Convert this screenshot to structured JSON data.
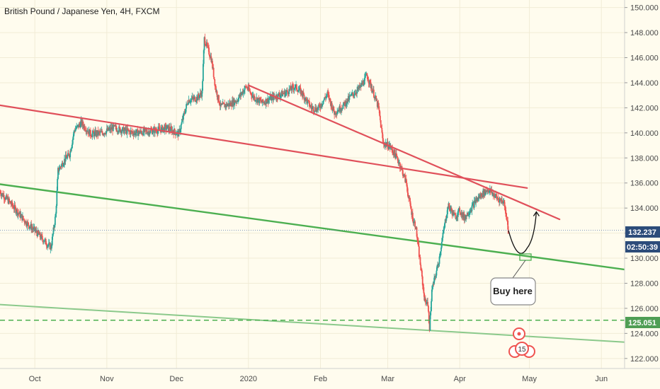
{
  "header": {
    "title": "British Pound / Japanese Yen, 4H, FXCM"
  },
  "colors": {
    "background": "#fffcee",
    "up": "#26a69a",
    "down": "#ef5350",
    "red_line": "#e0505a",
    "green_line": "#4caf50",
    "light_green_line": "#8bc98b",
    "tag_blue": "#2c4c7a",
    "tag_green": "#4f9e54"
  },
  "price_tags": {
    "last_price": "132.237",
    "countdown": "02:50:39",
    "support_level": "125.051"
  },
  "callout": {
    "text": "Buy here"
  },
  "badge": {
    "count": "15"
  },
  "chart_data": {
    "type": "candlestick",
    "title": "British Pound / Japanese Yen, 4H, FXCM",
    "ylim": [
      121.2,
      150.6
    ],
    "y_ticks": [
      122,
      124,
      126,
      128,
      130,
      132,
      134,
      136,
      138,
      140,
      142,
      144,
      146,
      148,
      150
    ],
    "y_tick_labels": [
      "122.000",
      "124.000",
      "126.000",
      "128.000",
      "130.000",
      "132.000",
      "134.000",
      "136.000",
      "138.000",
      "140.000",
      "142.000",
      "144.000",
      "146.000",
      "148.000",
      "150.000"
    ],
    "x_tick_labels": [
      "Oct",
      "Nov",
      "Dec",
      "2020",
      "Feb",
      "Mar",
      "Apr",
      "May",
      "Jun"
    ],
    "x_tick_dates": [
      "2019-10-01",
      "2019-11-01",
      "2019-12-01",
      "2020-01-01",
      "2020-02-01",
      "2020-03-01",
      "2020-04-01",
      "2020-05-01",
      "2020-06-01"
    ],
    "x_range": [
      "2019-09-16",
      "2020-06-11"
    ],
    "price_path": [
      [
        "2019-09-16",
        135.3
      ],
      [
        "2019-09-20",
        134.5
      ],
      [
        "2019-09-24",
        133.6
      ],
      [
        "2019-09-27",
        132.9
      ],
      [
        "2019-10-01",
        132.2
      ],
      [
        "2019-10-04",
        131.6
      ],
      [
        "2019-10-07",
        131.0
      ],
      [
        "2019-10-08",
        130.9
      ],
      [
        "2019-10-10",
        133.5
      ],
      [
        "2019-10-11",
        137.0
      ],
      [
        "2019-10-14",
        137.9
      ],
      [
        "2019-10-16",
        138.3
      ],
      [
        "2019-10-18",
        140.2
      ],
      [
        "2019-10-21",
        140.8
      ],
      [
        "2019-10-25",
        139.9
      ],
      [
        "2019-10-30",
        140.0
      ],
      [
        "2019-11-04",
        140.4
      ],
      [
        "2019-11-08",
        140.2
      ],
      [
        "2019-11-13",
        140.0
      ],
      [
        "2019-11-18",
        140.1
      ],
      [
        "2019-11-22",
        140.2
      ],
      [
        "2019-11-27",
        140.4
      ],
      [
        "2019-12-02",
        139.9
      ],
      [
        "2019-12-04",
        141.3
      ],
      [
        "2019-12-06",
        142.6
      ],
      [
        "2019-12-10",
        142.8
      ],
      [
        "2019-12-12",
        143.2
      ],
      [
        "2019-12-13",
        147.5
      ],
      [
        "2019-12-16",
        145.9
      ],
      [
        "2019-12-18",
        143.4
      ],
      [
        "2019-12-20",
        142.1
      ],
      [
        "2019-12-24",
        142.3
      ],
      [
        "2019-12-27",
        142.6
      ],
      [
        "2019-12-31",
        143.7
      ],
      [
        "2020-01-03",
        142.9
      ],
      [
        "2020-01-07",
        142.4
      ],
      [
        "2020-01-10",
        142.7
      ],
      [
        "2020-01-14",
        143.0
      ],
      [
        "2020-01-17",
        143.2
      ],
      [
        "2020-01-21",
        143.7
      ],
      [
        "2020-01-24",
        143.2
      ],
      [
        "2020-01-28",
        142.0
      ],
      [
        "2020-01-31",
        141.9
      ],
      [
        "2020-02-04",
        143.1
      ],
      [
        "2020-02-07",
        141.6
      ],
      [
        "2020-02-11",
        142.2
      ],
      [
        "2020-02-14",
        142.9
      ],
      [
        "2020-02-18",
        143.6
      ],
      [
        "2020-02-20",
        144.2
      ],
      [
        "2020-02-21",
        144.6
      ],
      [
        "2020-02-24",
        143.1
      ],
      [
        "2020-02-26",
        142.0
      ],
      [
        "2020-02-28",
        139.2
      ],
      [
        "2020-03-02",
        138.9
      ],
      [
        "2020-03-04",
        138.3
      ],
      [
        "2020-03-06",
        137.6
      ],
      [
        "2020-03-09",
        136.0
      ],
      [
        "2020-03-10",
        134.8
      ],
      [
        "2020-03-12",
        133.0
      ],
      [
        "2020-03-13",
        132.6
      ],
      [
        "2020-03-16",
        128.0
      ],
      [
        "2020-03-17",
        126.5
      ],
      [
        "2020-03-18",
        126.6
      ],
      [
        "2020-03-19",
        124.5
      ],
      [
        "2020-03-20",
        127.4
      ],
      [
        "2020-03-23",
        129.8
      ],
      [
        "2020-03-24",
        131.0
      ],
      [
        "2020-03-26",
        133.2
      ],
      [
        "2020-03-27",
        134.2
      ],
      [
        "2020-03-30",
        133.3
      ],
      [
        "2020-04-01",
        133.8
      ],
      [
        "2020-04-03",
        133.2
      ],
      [
        "2020-04-06",
        134.0
      ],
      [
        "2020-04-08",
        134.6
      ],
      [
        "2020-04-10",
        135.0
      ],
      [
        "2020-04-13",
        135.5
      ],
      [
        "2020-04-15",
        135.2
      ],
      [
        "2020-04-17",
        134.8
      ],
      [
        "2020-04-20",
        134.5
      ],
      [
        "2020-04-21",
        133.5
      ],
      [
        "2020-04-22",
        132.2
      ]
    ],
    "annotations": {
      "red_trendline_long": [
        [
          "2019-09-16",
          142.2
        ],
        [
          "2020-04-30",
          135.6
        ]
      ],
      "red_trendline_short": [
        [
          "2020-01-01",
          143.8
        ],
        [
          "2020-05-14",
          133.1
        ]
      ],
      "green_trendline": [
        [
          "2019-09-16",
          135.9
        ],
        [
          "2020-06-11",
          129.1
        ]
      ],
      "light_green_trendline": [
        [
          "2019-09-16",
          126.3
        ],
        [
          "2020-06-11",
          123.3
        ]
      ],
      "support_dashed": 125.051,
      "last_price_line": 132.237,
      "projection_path": [
        [
          "2020-04-22",
          132.2
        ],
        [
          "2020-04-26",
          130.3
        ],
        [
          "2020-04-30",
          130.8
        ],
        [
          "2020-05-04",
          133.7
        ]
      ]
    }
  }
}
